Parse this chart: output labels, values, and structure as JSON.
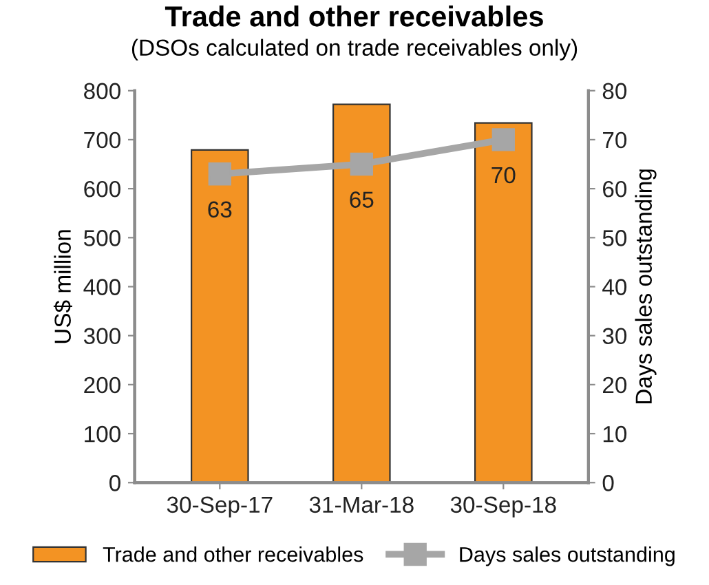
{
  "chart_data": {
    "type": "bar",
    "title": "Trade and other receivables",
    "subtitle": "(DSOs calculated on trade receivables only)",
    "ylabel": "US$ million",
    "y2label": "Days sales outstanding",
    "categories": [
      "30-Sep-17",
      "31-Mar-18",
      "30-Sep-18"
    ],
    "series": [
      {
        "name": "Trade and other receivables",
        "color": "#f39323",
        "values": [
          679,
          772,
          734
        ]
      },
      {
        "name": "Days sales outstanding",
        "type": "line",
        "axis": "y2",
        "color": "#a6a6a6",
        "values": [
          63,
          65,
          70
        ],
        "value_labels": [
          "63",
          "65",
          "70"
        ],
        "marker": "square"
      }
    ],
    "ylim": [
      0,
      800
    ],
    "yticks": [
      0,
      100,
      200,
      300,
      400,
      500,
      600,
      700,
      800
    ],
    "y2lim": [
      0,
      80
    ],
    "y2ticks": [
      0,
      10,
      20,
      30,
      40,
      50,
      60,
      70,
      80
    ],
    "grid": false,
    "legend": "bottom"
  }
}
